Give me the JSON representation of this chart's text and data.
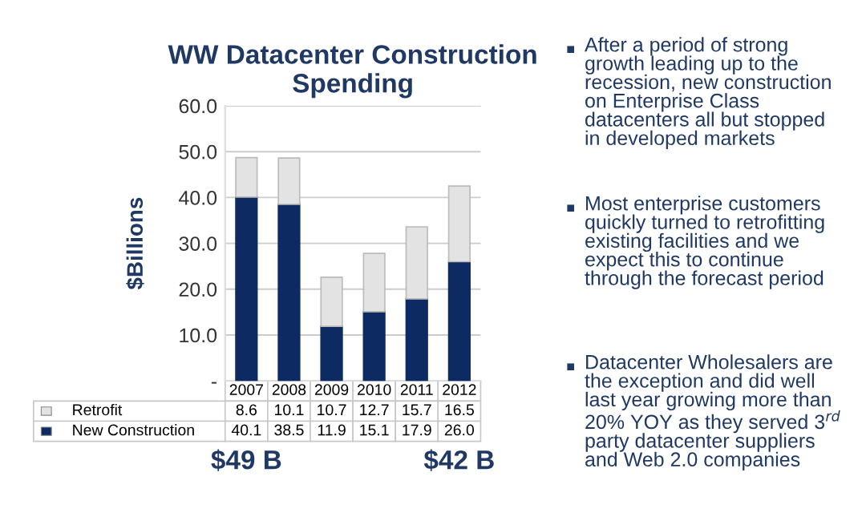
{
  "chart_data": {
    "type": "bar",
    "title": "WW Datacenter Construction\nSpending",
    "ylabel": "$Billions",
    "categories": [
      "2007",
      "2008",
      "2009",
      "2010",
      "2011",
      "2012"
    ],
    "stacked": true,
    "legend": "bottom left",
    "grid": "y",
    "series": [
      {
        "name": "New Construction",
        "color": "#0d2a63",
        "values": [
          40.1,
          38.5,
          11.9,
          15.1,
          17.9,
          26.0
        ],
        "value_labels": [
          "40.1",
          "38.5",
          "11.9",
          "15.1",
          "17.9",
          "26.0"
        ]
      },
      {
        "name": "Retrofit",
        "color": "#e3e3e3",
        "values": [
          8.6,
          10.1,
          10.7,
          12.7,
          15.7,
          16.5
        ],
        "value_labels": [
          "8.6",
          "10.1",
          "10.7",
          "12.7",
          "15.7",
          "16.5"
        ]
      }
    ],
    "ylim": [
      0,
      60
    ],
    "yticks": [
      {
        "value": 0,
        "label": "-"
      },
      {
        "value": 10,
        "label": "10.0"
      },
      {
        "value": 20,
        "label": "20.0"
      },
      {
        "value": 30,
        "label": "30.0"
      },
      {
        "value": 40,
        "label": "40.0"
      },
      {
        "value": 50,
        "label": "50.0"
      },
      {
        "value": 60,
        "label": "60.0"
      }
    ],
    "annotations": [
      "After a period of strong growth leading up to the recession, new construction on Enterprise Class datacenters all but stopped in developed markets",
      "Most enterprise customers quickly turned to retrofitting existing facilities and we expect this to continue through the forecast period",
      "Datacenter Wholesalers are the exception and did well last year growing more than 20% YOY as they served 3$^{rd}$ party datacenter suppliers and Web 2.0 companies",
      "$49 B",
      "$42 B"
    ]
  }
}
